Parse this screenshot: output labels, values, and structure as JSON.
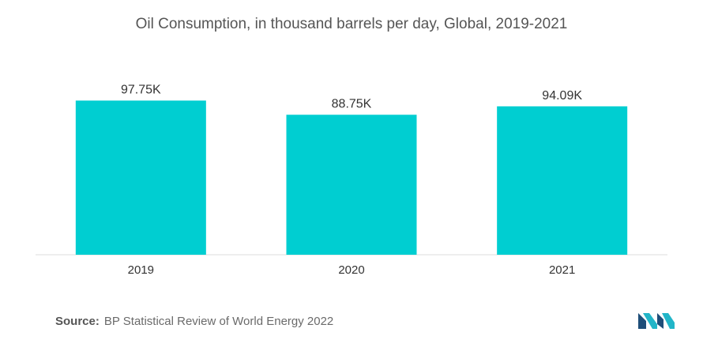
{
  "chart_data": {
    "type": "bar",
    "title": "Oil Consumption, in thousand barrels per day, Global, 2019-2021",
    "categories": [
      "2019",
      "2020",
      "2021"
    ],
    "values": [
      97.75,
      88.75,
      94.09
    ],
    "value_labels": [
      "97.75K",
      "88.75K",
      "94.09K"
    ],
    "unit": "thousand barrels per day",
    "ylim": [
      0,
      100
    ],
    "grid": false,
    "legend": "none",
    "bar_color": "#00CED1"
  },
  "source": {
    "label": "Source:",
    "text": "BP Statistical Review of World Energy 2022"
  },
  "logo": {
    "icon": "mordor-intelligence-logo-icon",
    "colors": [
      "#1f4e79",
      "#22b5c8"
    ]
  }
}
